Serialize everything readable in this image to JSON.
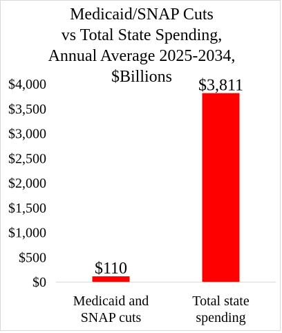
{
  "chart_data": {
    "type": "bar",
    "title_lines": [
      "Medicaid/SNAP Cuts",
      "vs Total State Spending,",
      "Annual Average 2025-2034,",
      "$Billions"
    ],
    "categories": [
      [
        "Medicaid and",
        "SNAP cuts"
      ],
      [
        "Total state",
        "spending"
      ]
    ],
    "values": [
      110,
      3811
    ],
    "data_labels": [
      "$110",
      "$3,811"
    ],
    "ylim": [
      0,
      4000
    ],
    "yticks": [
      0,
      500,
      1000,
      1500,
      2000,
      2500,
      3000,
      3500,
      4000
    ],
    "ytick_labels": [
      "$0",
      "$500",
      "$1,000",
      "$1,500",
      "$2,000",
      "$2,500",
      "$3,000",
      "$3,500",
      "$4,000"
    ],
    "grid": false,
    "legend": "none",
    "bar_color": "#ff0000",
    "axis_color": "#d9d9d9"
  }
}
